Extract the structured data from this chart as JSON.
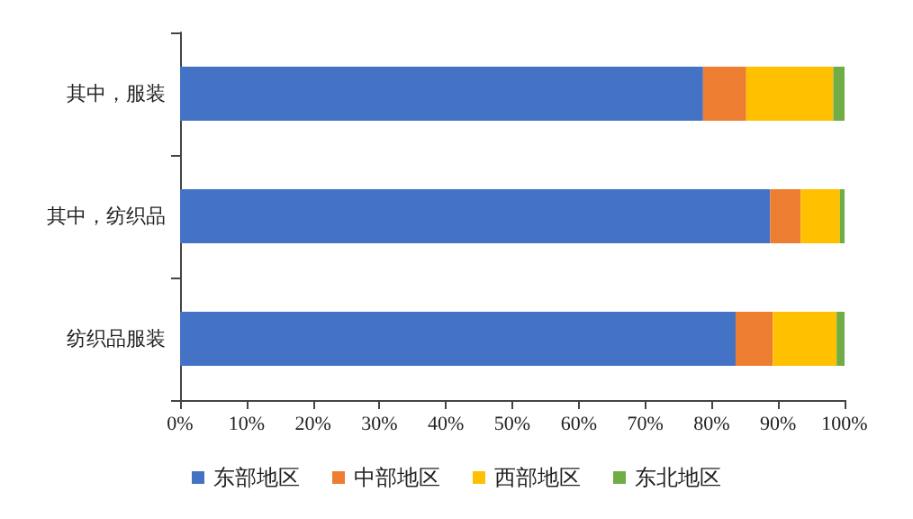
{
  "chart_data": {
    "type": "bar",
    "orientation": "horizontal",
    "stacked": true,
    "categories": [
      "其中，服装",
      "其中，纺织品",
      "纺织品服装"
    ],
    "series": [
      {
        "name": "东部地区",
        "color": "#4472c4",
        "values": [
          78.7,
          88.8,
          83.6
        ]
      },
      {
        "name": "中部地区",
        "color": "#ed7d31",
        "values": [
          6.5,
          4.6,
          5.6
        ]
      },
      {
        "name": "西部地区",
        "color": "#ffc000",
        "values": [
          13.1,
          5.9,
          9.6
        ]
      },
      {
        "name": "东北地区",
        "color": "#70ad47",
        "values": [
          1.7,
          0.7,
          1.2
        ]
      }
    ],
    "xlim": [
      0,
      100
    ],
    "xticks": [
      {
        "value": 0,
        "label": "0%"
      },
      {
        "value": 10,
        "label": "10%"
      },
      {
        "value": 20,
        "label": "20%"
      },
      {
        "value": 30,
        "label": "30%"
      },
      {
        "value": 40,
        "label": "40%"
      },
      {
        "value": 50,
        "label": "50%"
      },
      {
        "value": 60,
        "label": "60%"
      },
      {
        "value": 70,
        "label": "70%"
      },
      {
        "value": 80,
        "label": "80%"
      },
      {
        "value": 90,
        "label": "90%"
      },
      {
        "value": 100,
        "label": "100%"
      }
    ],
    "grid": false,
    "legend": "bottom"
  }
}
